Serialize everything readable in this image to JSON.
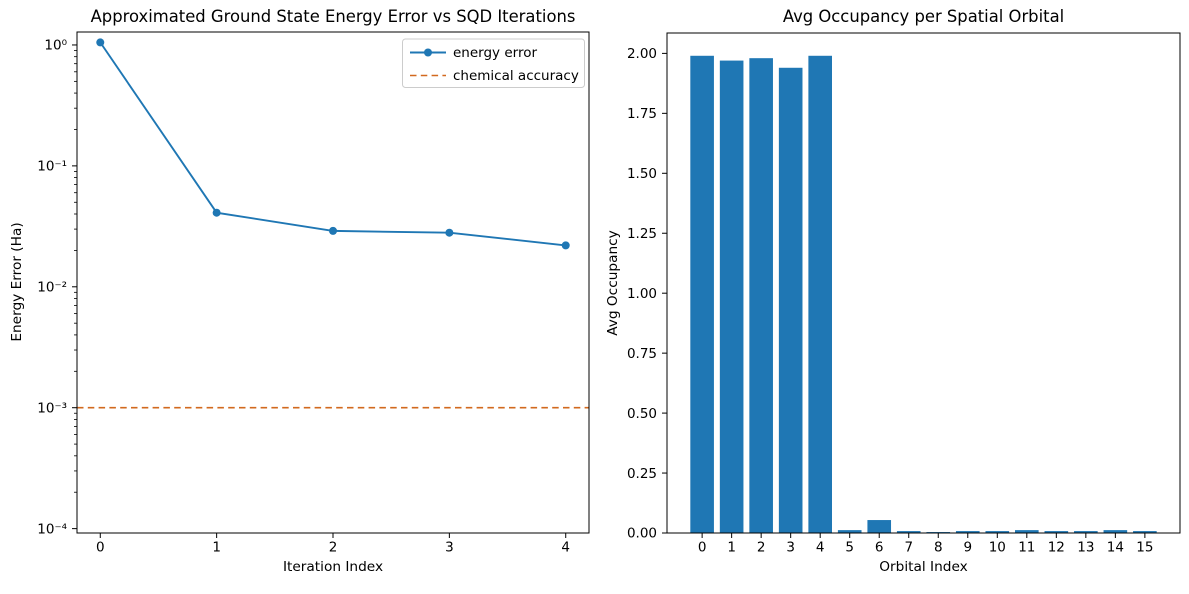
{
  "figure": {
    "background": "#ffffff",
    "colors": {
      "series_blue": "#1f77b4",
      "accuracy_line": "#d2691e",
      "axes": "#000000",
      "legend_border": "#cccccc",
      "text": "#000000"
    }
  },
  "chart_data": [
    {
      "type": "line",
      "title": "Approximated Ground State Energy Error vs SQD Iterations",
      "xlabel": "Iteration Index",
      "ylabel": "Energy Error (Ha)",
      "yscale": "log",
      "grid": false,
      "xlim": [
        -0.2,
        4.2
      ],
      "ylim": [
        9.2e-05,
        1.28
      ],
      "x": [
        0,
        1,
        2,
        3,
        4
      ],
      "series": [
        {
          "name": "energy error",
          "color": "#1f77b4",
          "marker": "circle",
          "linestyle": "solid",
          "values": [
            1.05,
            0.041,
            0.029,
            0.028,
            0.022
          ]
        }
      ],
      "hline": {
        "label": "chemical accuracy",
        "value": 0.001,
        "color": "#d2691e",
        "linestyle": "dashed"
      },
      "xticks": [
        {
          "value": 0,
          "label": "0"
        },
        {
          "value": 1,
          "label": "1"
        },
        {
          "value": 2,
          "label": "2"
        },
        {
          "value": 3,
          "label": "3"
        },
        {
          "value": 4,
          "label": "4"
        }
      ],
      "yticks": [
        {
          "value": 1,
          "label": "10⁰"
        },
        {
          "value": 0.1,
          "label": "10⁻¹"
        },
        {
          "value": 0.01,
          "label": "10⁻²"
        },
        {
          "value": 0.001,
          "label": "10⁻³"
        },
        {
          "value": 0.0001,
          "label": "10⁻⁴"
        }
      ],
      "legend": {
        "position": "upper right",
        "entries": [
          "energy error",
          "chemical accuracy"
        ]
      }
    },
    {
      "type": "bar",
      "title": "Avg Occupancy per Spatial Orbital",
      "xlabel": "Orbital Index",
      "ylabel": "Avg Occupancy",
      "grid": false,
      "xlim": [
        -1.19,
        16.19
      ],
      "ylim": [
        0,
        2.085
      ],
      "bar_color": "#1f77b4",
      "bar_width": 0.8,
      "categories": [
        "0",
        "1",
        "2",
        "3",
        "4",
        "5",
        "6",
        "7",
        "8",
        "9",
        "10",
        "11",
        "12",
        "13",
        "14",
        "15"
      ],
      "values": [
        1.99,
        1.97,
        1.98,
        1.94,
        1.99,
        0.012,
        0.054,
        0.008,
        0.004,
        0.008,
        0.008,
        0.012,
        0.008,
        0.008,
        0.012,
        0.008
      ],
      "yticks": [
        {
          "value": 0,
          "label": "0.00"
        },
        {
          "value": 0.25,
          "label": "0.25"
        },
        {
          "value": 0.5,
          "label": "0.50"
        },
        {
          "value": 0.75,
          "label": "0.75"
        },
        {
          "value": 1,
          "label": "1.00"
        },
        {
          "value": 1.25,
          "label": "1.25"
        },
        {
          "value": 1.5,
          "label": "1.50"
        },
        {
          "value": 1.75,
          "label": "1.75"
        },
        {
          "value": 2,
          "label": "2.00"
        }
      ]
    }
  ]
}
